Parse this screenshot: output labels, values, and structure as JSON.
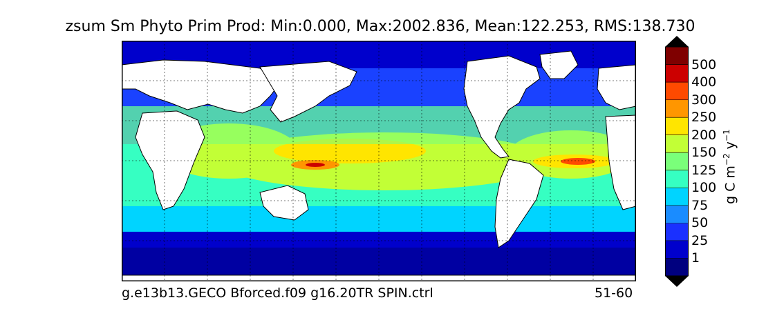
{
  "title": "zsum Sm Phyto Prim Prod: Min:0.000, Max:2002.836, Mean:122.253, RMS:138.730",
  "footer": {
    "case_name": "g.e13b13.GECO Bforced.f09 g16.20TR SPIN.ctrl",
    "years": "51-60"
  },
  "colorbar": {
    "unit_base": "g C m",
    "unit_exp1": "−2",
    "unit_mid": " y",
    "unit_exp2": "−1",
    "levels": [
      "1",
      "25",
      "50",
      "75",
      "100",
      "125",
      "150",
      "200",
      "250",
      "300",
      "400",
      "500"
    ],
    "colors": [
      "#00007f",
      "#0000cc",
      "#1a30ff",
      "#1a8cff",
      "#00d4ff",
      "#36ffc2",
      "#7aff7a",
      "#c2ff36",
      "#ffe500",
      "#ff9600",
      "#ff4a00",
      "#cc0000",
      "#7f0000"
    ]
  },
  "map": {
    "projection": "cylindrical",
    "grid": "dashed",
    "land_color": "#ffffff"
  }
}
